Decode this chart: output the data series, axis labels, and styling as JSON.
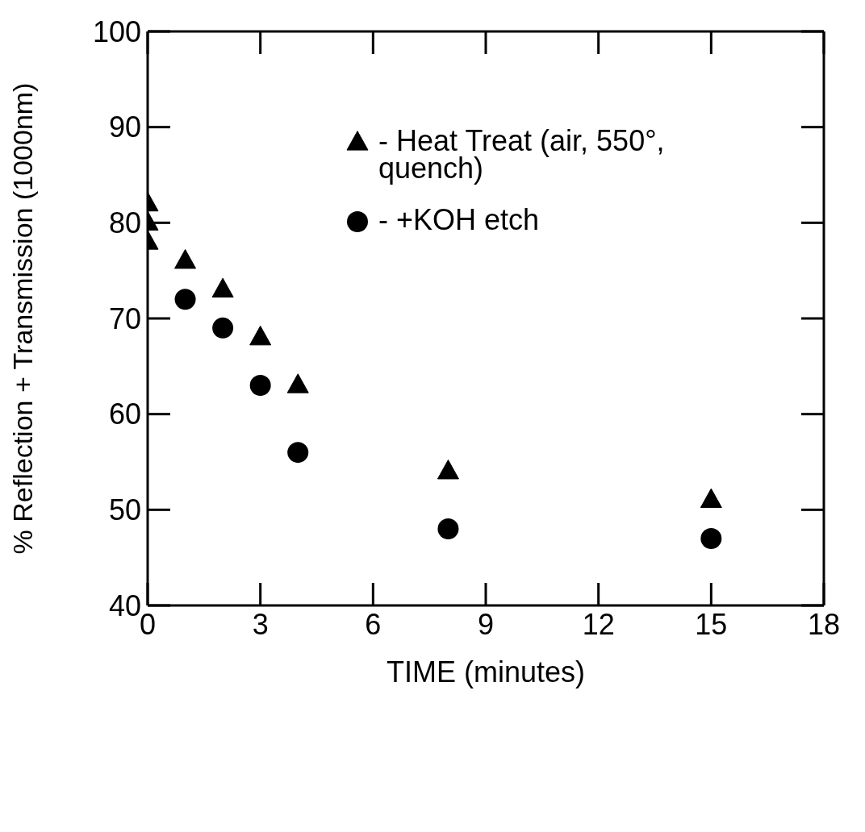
{
  "chart_data": {
    "type": "scatter",
    "xlabel": "TIME (minutes)",
    "ylabel": "% Reflection + Transmission (1000nm)",
    "xlim": [
      0,
      18
    ],
    "xticks": [
      0,
      3,
      6,
      9,
      12,
      15,
      18
    ],
    "ylim": [
      40,
      100
    ],
    "yticks": [
      40,
      50,
      60,
      70,
      80,
      90,
      100
    ],
    "legend": "top right",
    "series": [
      {
        "name": "- Heat Treat (air, 550°, quench)",
        "color": "#000000",
        "marker": "triangle",
        "x": [
          0,
          0,
          0,
          1,
          2,
          3,
          4,
          8,
          15
        ],
        "values": [
          82,
          80,
          78,
          76,
          73,
          68,
          63,
          54,
          51
        ]
      },
      {
        "name": "- +KOH etch",
        "color": "#000000",
        "marker": "circle",
        "x": [
          1,
          2,
          3,
          4,
          8,
          15
        ],
        "values": [
          72,
          69,
          63,
          56,
          48,
          47
        ]
      }
    ]
  }
}
